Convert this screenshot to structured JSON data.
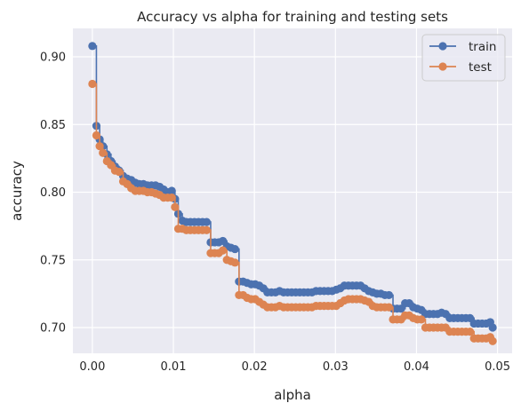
{
  "chart_data": {
    "type": "line",
    "title": "Accuracy vs alpha for training and testing sets",
    "xlabel": "alpha",
    "ylabel": "accuracy",
    "xlim": [
      -0.0024,
      0.0518
    ],
    "ylim": [
      0.681,
      0.921
    ],
    "xticks": [
      0.0,
      0.01,
      0.02,
      0.03,
      0.04,
      0.05
    ],
    "xtick_labels": [
      "0.00",
      "0.01",
      "0.02",
      "0.03",
      "0.04",
      "0.05"
    ],
    "yticks": [
      0.7,
      0.75,
      0.8,
      0.85,
      0.9
    ],
    "ytick_labels": [
      "0.70",
      "0.75",
      "0.80",
      "0.85",
      "0.90"
    ],
    "grid": true,
    "legend_position": "top-right",
    "drawstyle": "steps-post",
    "colors": {
      "background": "#EAEAF2",
      "grid": "#FFFFFF",
      "train": "#4C72B0",
      "test": "#DD8452"
    },
    "series": [
      {
        "name": "train",
        "color": "#4C72B0",
        "x": [
          0.0,
          0.0005,
          0.0009,
          0.0013,
          0.0018,
          0.0023,
          0.0028,
          0.0033,
          0.0038,
          0.0043,
          0.0048,
          0.0053,
          0.0058,
          0.0063,
          0.0068,
          0.0073,
          0.0078,
          0.0083,
          0.0088,
          0.0093,
          0.0098,
          0.0102,
          0.0106,
          0.0111,
          0.0116,
          0.0121,
          0.0126,
          0.0131,
          0.0136,
          0.0141,
          0.0146,
          0.0151,
          0.0156,
          0.0161,
          0.0166,
          0.0171,
          0.0176,
          0.0181,
          0.0186,
          0.0191,
          0.0196,
          0.0201,
          0.0206,
          0.0211,
          0.0216,
          0.0221,
          0.0226,
          0.0231,
          0.0236,
          0.0241,
          0.0246,
          0.0251,
          0.0256,
          0.0261,
          0.0266,
          0.0271,
          0.0276,
          0.0281,
          0.0286,
          0.0291,
          0.0296,
          0.0301,
          0.0306,
          0.0311,
          0.0316,
          0.0321,
          0.0326,
          0.0331,
          0.0336,
          0.0341,
          0.0346,
          0.0351,
          0.0356,
          0.0361,
          0.0366,
          0.0371,
          0.0376,
          0.0381,
          0.0386,
          0.0391,
          0.0396,
          0.0401,
          0.0406,
          0.0411,
          0.0416,
          0.0421,
          0.0426,
          0.0431,
          0.0436,
          0.0441,
          0.0446,
          0.0451,
          0.0456,
          0.0461,
          0.0466,
          0.0471,
          0.0476,
          0.0481,
          0.0486,
          0.0491,
          0.0494
        ],
        "y": [
          0.908,
          0.849,
          0.839,
          0.834,
          0.828,
          0.823,
          0.819,
          0.816,
          0.812,
          0.81,
          0.809,
          0.807,
          0.806,
          0.806,
          0.805,
          0.805,
          0.805,
          0.804,
          0.802,
          0.8,
          0.801,
          0.795,
          0.784,
          0.779,
          0.778,
          0.778,
          0.778,
          0.778,
          0.778,
          0.778,
          0.763,
          0.763,
          0.763,
          0.764,
          0.76,
          0.759,
          0.758,
          0.734,
          0.734,
          0.733,
          0.732,
          0.732,
          0.731,
          0.729,
          0.726,
          0.726,
          0.726,
          0.727,
          0.726,
          0.726,
          0.726,
          0.726,
          0.726,
          0.726,
          0.726,
          0.726,
          0.727,
          0.727,
          0.727,
          0.727,
          0.727,
          0.728,
          0.729,
          0.731,
          0.731,
          0.731,
          0.731,
          0.731,
          0.729,
          0.727,
          0.726,
          0.725,
          0.725,
          0.724,
          0.724,
          0.714,
          0.714,
          0.714,
          0.718,
          0.718,
          0.715,
          0.714,
          0.713,
          0.71,
          0.71,
          0.71,
          0.71,
          0.711,
          0.71,
          0.707,
          0.707,
          0.707,
          0.707,
          0.707,
          0.707,
          0.703,
          0.703,
          0.703,
          0.703,
          0.704,
          0.7
        ]
      },
      {
        "name": "test",
        "color": "#DD8452",
        "x": [
          0.0,
          0.0005,
          0.0009,
          0.0013,
          0.0018,
          0.0023,
          0.0028,
          0.0033,
          0.0038,
          0.0043,
          0.0048,
          0.0053,
          0.0058,
          0.0063,
          0.0068,
          0.0073,
          0.0078,
          0.0083,
          0.0088,
          0.0093,
          0.0098,
          0.0102,
          0.0106,
          0.0111,
          0.0116,
          0.0121,
          0.0126,
          0.0131,
          0.0136,
          0.0141,
          0.0146,
          0.0151,
          0.0156,
          0.0161,
          0.0166,
          0.0171,
          0.0176,
          0.0181,
          0.0186,
          0.0191,
          0.0196,
          0.0201,
          0.0206,
          0.0211,
          0.0216,
          0.0221,
          0.0226,
          0.0231,
          0.0236,
          0.0241,
          0.0246,
          0.0251,
          0.0256,
          0.0261,
          0.0266,
          0.0271,
          0.0276,
          0.0281,
          0.0286,
          0.0291,
          0.0296,
          0.0301,
          0.0306,
          0.0311,
          0.0316,
          0.0321,
          0.0326,
          0.0331,
          0.0336,
          0.0341,
          0.0346,
          0.0351,
          0.0356,
          0.0361,
          0.0366,
          0.0371,
          0.0376,
          0.0381,
          0.0386,
          0.0391,
          0.0396,
          0.0401,
          0.0406,
          0.0411,
          0.0416,
          0.0421,
          0.0426,
          0.0431,
          0.0436,
          0.0441,
          0.0446,
          0.0451,
          0.0456,
          0.0461,
          0.0466,
          0.0471,
          0.0476,
          0.0481,
          0.0486,
          0.0491,
          0.0494
        ],
        "y": [
          0.88,
          0.842,
          0.834,
          0.829,
          0.823,
          0.82,
          0.816,
          0.815,
          0.808,
          0.806,
          0.803,
          0.801,
          0.801,
          0.801,
          0.8,
          0.8,
          0.799,
          0.798,
          0.796,
          0.796,
          0.796,
          0.789,
          0.773,
          0.773,
          0.772,
          0.772,
          0.772,
          0.772,
          0.772,
          0.772,
          0.755,
          0.755,
          0.755,
          0.757,
          0.75,
          0.749,
          0.748,
          0.724,
          0.724,
          0.722,
          0.721,
          0.721,
          0.719,
          0.717,
          0.715,
          0.715,
          0.715,
          0.716,
          0.715,
          0.715,
          0.715,
          0.715,
          0.715,
          0.715,
          0.715,
          0.715,
          0.716,
          0.716,
          0.716,
          0.716,
          0.716,
          0.716,
          0.718,
          0.72,
          0.721,
          0.721,
          0.721,
          0.721,
          0.72,
          0.719,
          0.716,
          0.715,
          0.715,
          0.715,
          0.715,
          0.706,
          0.706,
          0.706,
          0.709,
          0.709,
          0.707,
          0.706,
          0.706,
          0.7,
          0.7,
          0.7,
          0.7,
          0.7,
          0.7,
          0.697,
          0.697,
          0.697,
          0.697,
          0.697,
          0.697,
          0.692,
          0.692,
          0.692,
          0.692,
          0.693,
          0.69
        ]
      }
    ]
  }
}
